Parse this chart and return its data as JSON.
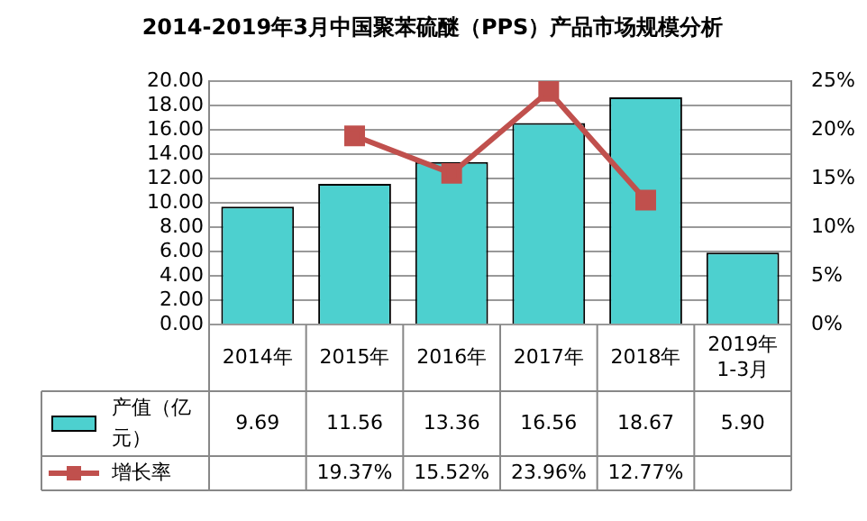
{
  "chart_data": {
    "type": "bar",
    "title": "2014-2019年3月中国聚苯硫醚（PPS）产品市场规模分析",
    "categories": [
      "2014年",
      "2015年",
      "2016年",
      "2017年",
      "2018年",
      "2019年1-3月"
    ],
    "series": [
      {
        "name": "产值（亿元）",
        "color": "#4dd0cf",
        "values": [
          9.69,
          11.56,
          13.36,
          16.56,
          18.67,
          5.9
        ],
        "value_labels": [
          "9.69",
          "11.56",
          "13.36",
          "16.56",
          "18.67",
          "5.90"
        ]
      },
      {
        "name": "增长率",
        "type": "line",
        "axis": "y2",
        "color": "#c0504d",
        "values": [
          null,
          19.37,
          15.52,
          23.96,
          12.77,
          null
        ],
        "value_labels": [
          null,
          "19.37%",
          "15.52%",
          "23.96%",
          "12.77%",
          null
        ]
      }
    ],
    "ylim": [
      0,
      20
    ],
    "yticks": [
      {
        "value": 0,
        "label": "0.00"
      },
      {
        "value": 2,
        "label": "2.00"
      },
      {
        "value": 4,
        "label": "4.00"
      },
      {
        "value": 6,
        "label": "6.00"
      },
      {
        "value": 8,
        "label": "8.00"
      },
      {
        "value": 10,
        "label": "10.00"
      },
      {
        "value": 12,
        "label": "12.00"
      },
      {
        "value": 14,
        "label": "14.00"
      },
      {
        "value": 16,
        "label": "16.00"
      },
      {
        "value": 18,
        "label": "18.00"
      },
      {
        "value": 20,
        "label": "20.00"
      }
    ],
    "y2lim": [
      0,
      25
    ],
    "y2ticks": [
      {
        "value": 0,
        "label": "0%"
      },
      {
        "value": 5,
        "label": "5%"
      },
      {
        "value": 10,
        "label": "10%"
      },
      {
        "value": 15,
        "label": "15%"
      },
      {
        "value": 20,
        "label": "20%"
      },
      {
        "value": 25,
        "label": "25%"
      }
    ],
    "grid": "y",
    "legend": "bottom",
    "marker": "square",
    "line_style": "solid"
  }
}
